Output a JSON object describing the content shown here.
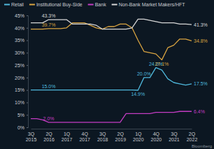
{
  "chart_data": {
    "type": "line",
    "categories": [
      "3Q 2015",
      null,
      null,
      "2Q 2016",
      null,
      null,
      "1Q 2017",
      null,
      null,
      "4Q 2017",
      null,
      null,
      "3Q 2018",
      null,
      null,
      "2Q 2019",
      null,
      null,
      "1Q 2020",
      null,
      null,
      "4Q 2020",
      null,
      null,
      "3Q 2021",
      null,
      null,
      "2Q 2022"
    ],
    "series": [
      {
        "name": "Retail",
        "color": "#4fb8dc",
        "values": [
          15.0,
          15.0,
          15.0,
          15.0,
          15.0,
          15.0,
          15.0,
          15.0,
          15.0,
          15.0,
          15.0,
          15.0,
          15.0,
          15.0,
          15.0,
          15.0,
          15.0,
          15.0,
          14.9,
          20.0,
          20.0,
          24.0,
          23.0,
          19.5,
          18.0,
          17.5,
          17.0,
          17.5
        ],
        "value_labels": [
          null,
          null,
          null,
          "15.0%",
          null,
          null,
          null,
          null,
          null,
          null,
          null,
          null,
          null,
          null,
          null,
          null,
          null,
          null,
          "14.9%",
          "20.0%",
          null,
          "24.0%",
          null,
          null,
          null,
          null,
          null,
          "17.5%"
        ]
      },
      {
        "name": "Institutional Buy-Side",
        "color": "#d9a441",
        "values": [
          39.5,
          39.5,
          39.5,
          39.7,
          39.7,
          39.7,
          40.0,
          42.0,
          42.0,
          42.0,
          41.0,
          40.0,
          39.5,
          40.5,
          40.5,
          41.5,
          41.5,
          40.0,
          35.0,
          30.5,
          30.0,
          29.5,
          27.1,
          32.0,
          33.0,
          35.5,
          35.5,
          34.8
        ],
        "value_labels": [
          null,
          null,
          null,
          "39.7%",
          null,
          null,
          null,
          null,
          null,
          null,
          null,
          null,
          null,
          null,
          null,
          null,
          null,
          null,
          null,
          null,
          null,
          null,
          "27.1%",
          null,
          null,
          null,
          null,
          "34.8%"
        ]
      },
      {
        "name": "Bank",
        "color": "#c23cc2",
        "values": [
          3.5,
          3.5,
          3.0,
          2.0,
          2.0,
          2.0,
          2.0,
          2.0,
          2.0,
          2.0,
          2.0,
          2.0,
          2.0,
          2.0,
          2.0,
          2.0,
          5.5,
          5.5,
          5.5,
          5.5,
          5.5,
          6.0,
          6.0,
          6.0,
          6.0,
          6.4,
          6.4,
          6.4
        ],
        "value_labels": [
          null,
          null,
          null,
          "2.0%",
          null,
          null,
          null,
          null,
          null,
          null,
          null,
          null,
          null,
          null,
          null,
          null,
          null,
          null,
          null,
          null,
          null,
          null,
          null,
          null,
          null,
          null,
          null,
          "6.4%"
        ]
      },
      {
        "name": "Non-Bank Market Makers/HFT",
        "color": "#d6d6d6",
        "values": [
          42.0,
          42.0,
          42.0,
          43.3,
          43.3,
          43.3,
          43.3,
          41.5,
          41.5,
          41.5,
          41.5,
          41.0,
          39.5,
          39.5,
          39.5,
          39.5,
          39.5,
          40.0,
          43.5,
          43.5,
          43.0,
          42.5,
          42.0,
          42.0,
          42.0,
          41.5,
          41.5,
          41.3
        ],
        "value_labels": [
          null,
          null,
          null,
          "43.3%",
          null,
          null,
          null,
          null,
          null,
          null,
          null,
          null,
          null,
          null,
          null,
          null,
          null,
          null,
          null,
          null,
          null,
          null,
          null,
          null,
          null,
          null,
          null,
          "41.3%"
        ]
      }
    ],
    "ylim": [
      0,
      45
    ],
    "yticks": [
      {
        "value": 0,
        "label": "0%"
      },
      {
        "value": 5,
        "label": "5%"
      },
      {
        "value": 10,
        "label": "10%"
      },
      {
        "value": 15,
        "label": "15%"
      },
      {
        "value": 20,
        "label": "20%"
      },
      {
        "value": 25,
        "label": "25%"
      },
      {
        "value": 30,
        "label": "30%"
      },
      {
        "value": 35,
        "label": "35%"
      },
      {
        "value": 40,
        "label": "40%"
      },
      {
        "value": 45,
        "label": "45%"
      }
    ],
    "grid": false,
    "legend": "top",
    "source": "Bloomberg"
  }
}
